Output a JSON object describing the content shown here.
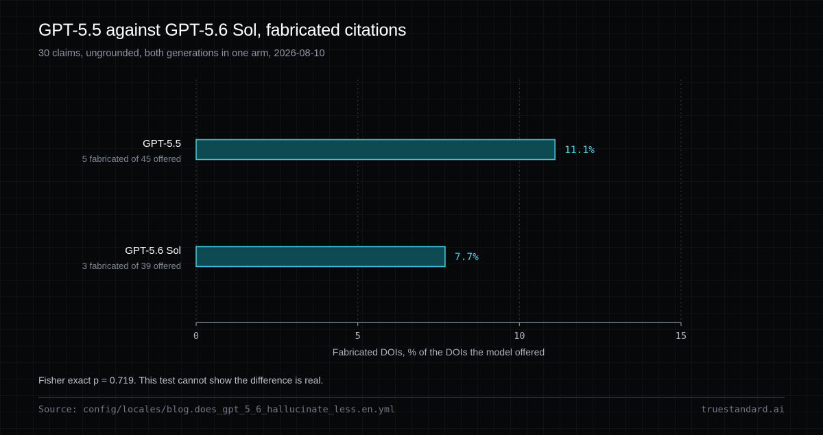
{
  "header": {
    "title": "GPT-5.5 against GPT-5.6 Sol, fabricated citations",
    "subtitle": "30 claims, ungrounded, both generations in one arm, 2026-08-10"
  },
  "chart_data": {
    "type": "bar",
    "orientation": "horizontal",
    "categories": [
      "GPT-5.5",
      "GPT-5.6 Sol"
    ],
    "sublabels": [
      "5 fabricated of 45 offered",
      "3 fabricated of 39 offered"
    ],
    "values": [
      11.1,
      7.7
    ],
    "value_labels": [
      "11.1%",
      "7.7%"
    ],
    "xlabel": "Fabricated DOIs, % of the DOIs the model offered",
    "xlim": [
      0,
      15
    ],
    "xticks": [
      0,
      5,
      10,
      15
    ],
    "grid": "vertical dotted",
    "colors": {
      "bar_fill": "#0e4a52",
      "bar_stroke": "#3fc6dc",
      "value_text": "#49cfe6"
    }
  },
  "footer": {
    "note": "Fisher exact p = 0.719. This test cannot show the difference is real.",
    "source": "Source: config/locales/blog.does_gpt_5_6_hallucinate_less.en.yml",
    "brand": "truestandard.ai"
  }
}
